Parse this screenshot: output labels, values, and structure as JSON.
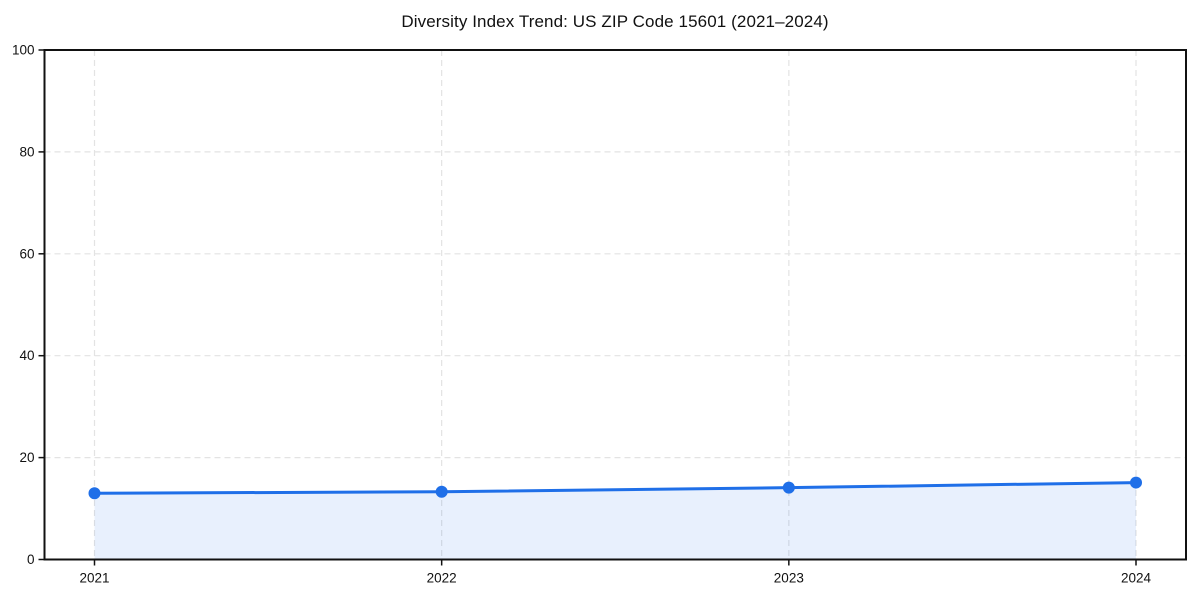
{
  "chart_data": {
    "type": "line",
    "title": "Diversity Index Trend: US ZIP Code 15601 (2021–2024)",
    "categories": [
      "2021",
      "2022",
      "2023",
      "2024"
    ],
    "series": [
      {
        "name": "Diversity Index",
        "values": [
          13.0,
          13.3,
          14.1,
          15.1
        ]
      }
    ],
    "xlabel": "",
    "ylabel": "",
    "ylim": [
      0,
      100
    ],
    "yticks": [
      0,
      20,
      40,
      60,
      80,
      100
    ],
    "grid": true,
    "grid_style": "dashed",
    "legend": false,
    "area_fill": true,
    "marker": "circle",
    "colors": {
      "line": "#1f6fe8",
      "marker": "#1f6fe8",
      "area": "rgba(31,111,232,0.10)",
      "grid": "#e3e3e3",
      "axis": "#111111",
      "text": "#111111",
      "background": "#ffffff"
    }
  }
}
